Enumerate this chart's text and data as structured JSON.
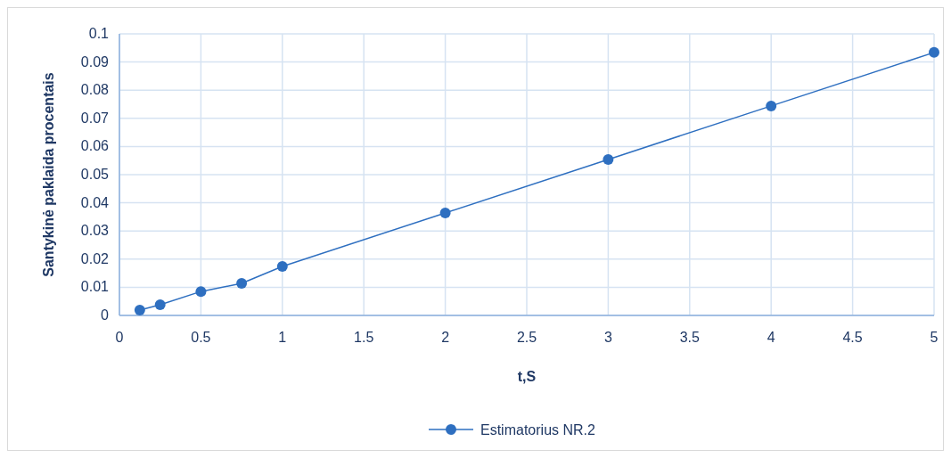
{
  "chart_data": {
    "type": "line",
    "xlabel": "t,S",
    "ylabel": "Santykinė paklaida procentais",
    "x": [
      0.125,
      0.25,
      0.5,
      0.75,
      1,
      2,
      3,
      4,
      5
    ],
    "series": [
      {
        "name": "Estimatorius NR.2",
        "color": "#2e6fc0",
        "values": [
          0.0019,
          0.0038,
          0.0085,
          0.0114,
          0.0174,
          0.0364,
          0.0554,
          0.0744,
          0.0934
        ]
      }
    ],
    "xlim": [
      0,
      5
    ],
    "xticks": [
      0,
      0.5,
      1,
      1.5,
      2,
      2.5,
      3,
      3.5,
      4,
      4.5,
      5
    ],
    "ylim": [
      0,
      0.1
    ],
    "yticks": [
      0,
      0.01,
      0.02,
      0.03,
      0.04,
      0.05,
      0.06,
      0.07,
      0.08,
      0.09,
      0.1
    ],
    "grid": true,
    "legend": "bottom",
    "marker": "circle",
    "line_style": "solid"
  }
}
